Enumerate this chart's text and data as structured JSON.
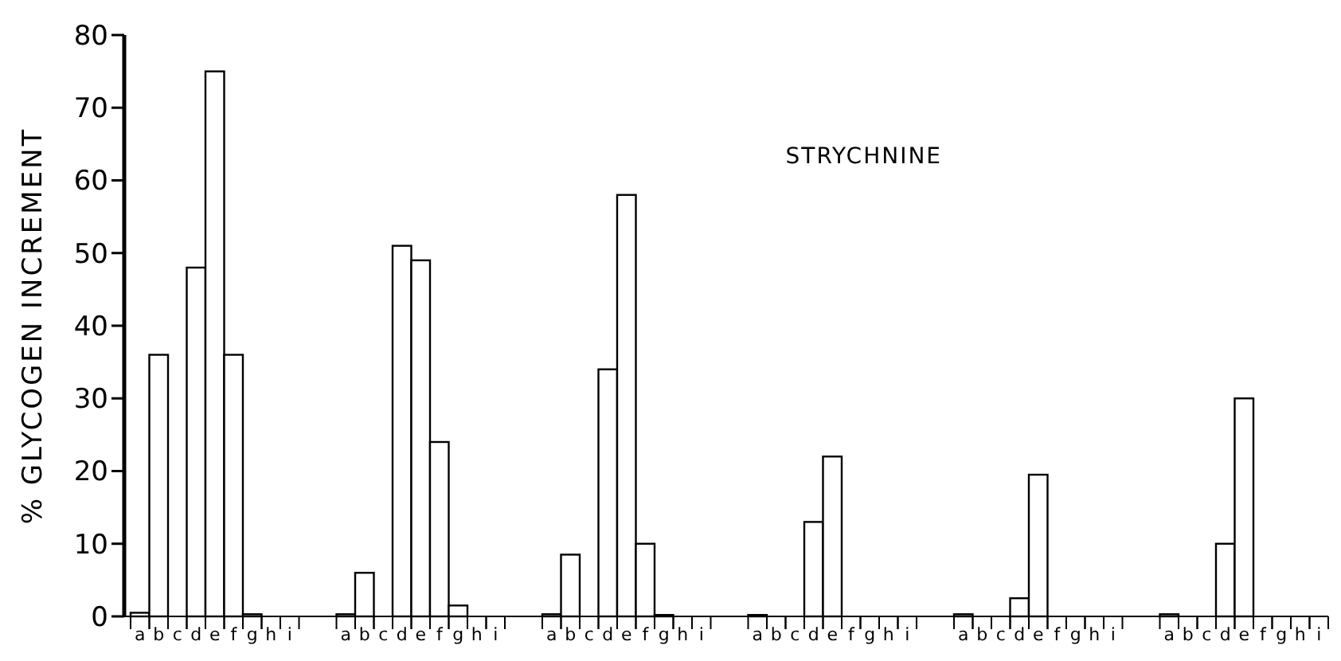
{
  "chart_data": {
    "type": "bar",
    "ylabel": "% GLYCOGEN INCREMENT",
    "annotations": [
      "STRYCHNINE"
    ],
    "categories": [
      "a",
      "b",
      "c",
      "d",
      "e",
      "f",
      "g",
      "h",
      "i",
      null,
      null,
      "a",
      "b",
      "c",
      "d",
      "e",
      "f",
      "g",
      "h",
      "i",
      null,
      null,
      "a",
      "b",
      "c",
      "d",
      "e",
      "f",
      "g",
      "h",
      "i",
      null,
      null,
      "a",
      "b",
      "c",
      "d",
      "e",
      "f",
      "g",
      "h",
      "i",
      null,
      null,
      "a",
      "b",
      "c",
      "d",
      "e",
      "f",
      "g",
      "h",
      "i",
      null,
      null,
      "a",
      "b",
      "c",
      "d",
      "e",
      "f",
      "g",
      "h",
      "i"
    ],
    "values": [
      0.5,
      36,
      0,
      48,
      75,
      36,
      0.3,
      0,
      0,
      null,
      null,
      0.3,
      6,
      0,
      51,
      49,
      24,
      1.5,
      0,
      0,
      null,
      null,
      0.3,
      8.5,
      0,
      34,
      58,
      10,
      0.2,
      0,
      0,
      null,
      null,
      0.2,
      0,
      0,
      13,
      22,
      0,
      0,
      0,
      0,
      null,
      null,
      0.3,
      0,
      0,
      2.5,
      19.5,
      0,
      0,
      0,
      0,
      null,
      null,
      0.3,
      0,
      0,
      10,
      30,
      0,
      0,
      0,
      0
    ],
    "color": "#ffffff",
    "ylim": [
      0,
      80
    ],
    "yticks": [
      0,
      10,
      20,
      30,
      40,
      50,
      60,
      70,
      80
    ],
    "grid": false
  }
}
